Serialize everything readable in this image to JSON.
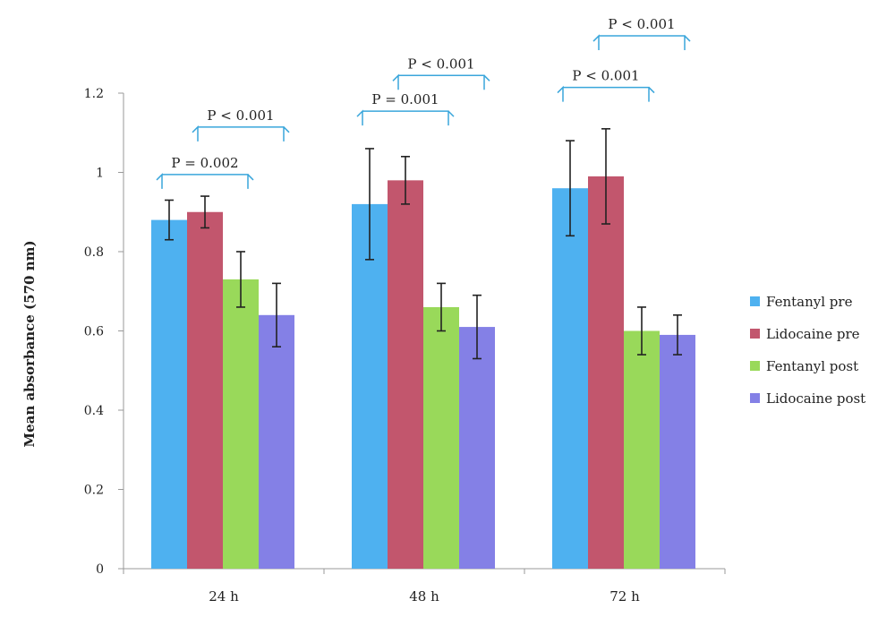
{
  "chart_data": {
    "type": "bar",
    "categories": [
      "24 h",
      "48 h",
      "72 h"
    ],
    "ylabel": "Mean absorbance (570 nm)",
    "xlabel": "",
    "ylim": [
      0,
      1.2
    ],
    "yticks": [
      "0",
      "0.2",
      "0.4",
      "0.6",
      "0.8",
      "1",
      "1.2"
    ],
    "grid": false,
    "legend_position": "right",
    "series": [
      {
        "name": "Fentanyl pre",
        "color": "#4eb1f0",
        "values": [
          0.88,
          0.92,
          0.96
        ],
        "errors": [
          0.05,
          0.14,
          0.12
        ]
      },
      {
        "name": "Lidocaine pre",
        "color": "#c2566d",
        "values": [
          0.9,
          0.98,
          0.99
        ],
        "errors": [
          0.04,
          0.06,
          0.12
        ]
      },
      {
        "name": "Fentanyl post",
        "color": "#99d95a",
        "values": [
          0.73,
          0.66,
          0.6
        ],
        "errors": [
          0.07,
          0.06,
          0.06
        ]
      },
      {
        "name": "Lidocaine post",
        "color": "#8480e6",
        "values": [
          0.64,
          0.61,
          0.59
        ],
        "errors": [
          0.08,
          0.08,
          0.05
        ]
      }
    ],
    "annotations": [
      {
        "category": 0,
        "from_series": 0,
        "to_series": 2,
        "text": "P = 0.002",
        "level": 0.99
      },
      {
        "category": 0,
        "from_series": 1,
        "to_series": 3,
        "text": "P < 0.001",
        "level": 1.11
      },
      {
        "category": 1,
        "from_series": 0,
        "to_series": 2,
        "text": "P = 0.001",
        "level": 1.15
      },
      {
        "category": 1,
        "from_series": 1,
        "to_series": 3,
        "text": "P < 0.001",
        "level": 1.24
      },
      {
        "category": 2,
        "from_series": 0,
        "to_series": 2,
        "text": "P < 0.001",
        "level": 1.21
      },
      {
        "category": 2,
        "from_series": 1,
        "to_series": 3,
        "text": "P < 0.001",
        "level": 1.34
      }
    ],
    "annotation_color": "#3aa6db"
  }
}
